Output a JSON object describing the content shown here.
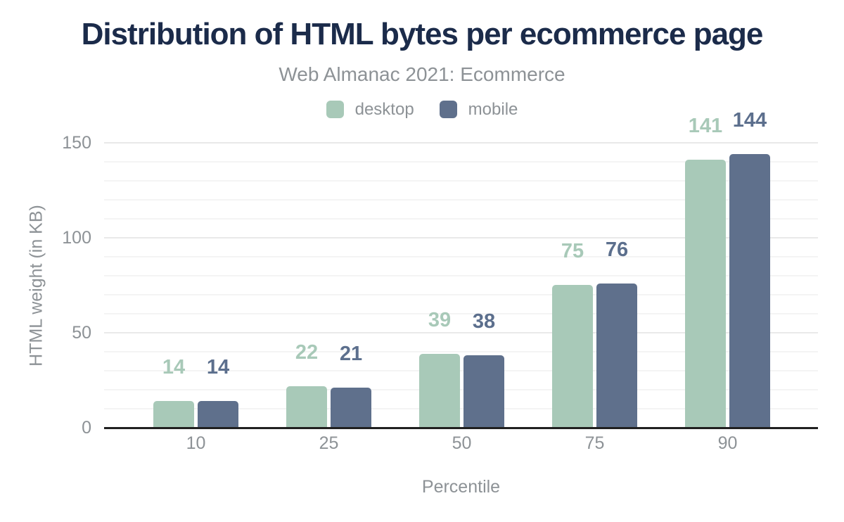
{
  "chart_data": {
    "type": "bar",
    "title": "Distribution of HTML bytes per ecommerce page",
    "subtitle": "Web Almanac 2021: Ecommerce",
    "xlabel": "Percentile",
    "ylabel": "HTML weight (in KB)",
    "categories": [
      "10",
      "25",
      "50",
      "75",
      "90"
    ],
    "series": [
      {
        "name": "desktop",
        "color": "#a8c9b8",
        "values": [
          14,
          22,
          39,
          75,
          141
        ]
      },
      {
        "name": "mobile",
        "color": "#5f708c",
        "values": [
          14,
          21,
          38,
          76,
          144
        ]
      }
    ],
    "ylim": [
      0,
      150
    ],
    "yticks": [
      "0",
      "50",
      "100",
      "150"
    ],
    "grid": {
      "minor_step_kb": 10,
      "major_step_kb": 50,
      "grid_on": true
    },
    "legend_position": "top"
  },
  "colors": {
    "title": "#1b2b4a",
    "text_gray": "#8d9296",
    "desktop_bar": "#a8c9b8",
    "mobile_bar": "#5f708c",
    "axis_line": "#202020",
    "major_grid": "#e9e9e9",
    "minor_grid": "#f4f4f4",
    "background": "#ffffff"
  }
}
